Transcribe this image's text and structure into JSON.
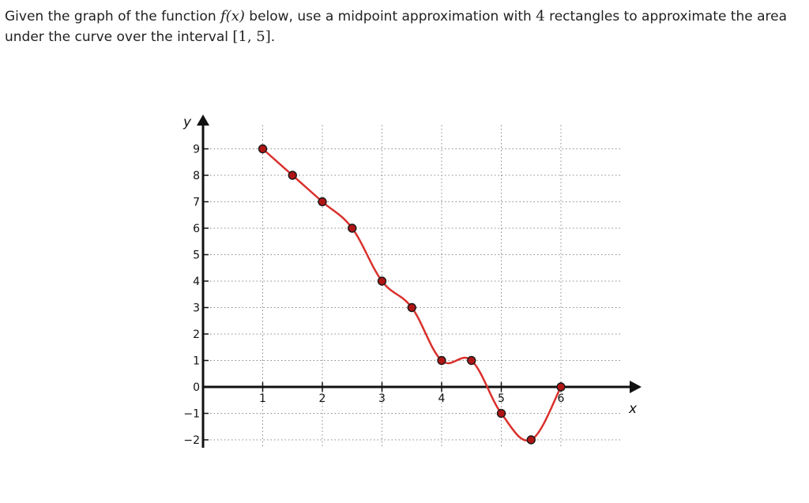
{
  "question": {
    "part1": "Given the graph of the function ",
    "func": "f(x)",
    "part2": " below, use a midpoint approximation with ",
    "n_rects": "4",
    "part3": " rectangles to approximate the area under the curve over the interval ",
    "interval": "[1, 5]",
    "part4": "."
  },
  "chart_data": {
    "type": "line",
    "title": "",
    "xlabel": "x",
    "ylabel": "y",
    "xlim": [
      0,
      6.5
    ],
    "ylim": [
      -2,
      9.5
    ],
    "grid": true,
    "x_ticks": [
      1,
      2,
      3,
      4,
      5,
      6
    ],
    "y_ticks": [
      -2,
      -1,
      0,
      1,
      2,
      3,
      4,
      5,
      6,
      7,
      8,
      9
    ],
    "x_tick_labels": [
      "1",
      "2",
      "3",
      "4",
      "5",
      "6"
    ],
    "y_tick_labels": [
      "−2",
      "−1",
      "0",
      "1",
      "2",
      "3",
      "4",
      "5",
      "6",
      "7",
      "8",
      "9"
    ],
    "series": [
      {
        "color": "#d9302c",
        "points": [
          {
            "x": 1,
            "y": 9
          },
          {
            "x": 1.5,
            "y": 8
          },
          {
            "x": 2,
            "y": 7
          },
          {
            "x": 2.5,
            "y": 6
          },
          {
            "x": 3,
            "y": 4
          },
          {
            "x": 3.5,
            "y": 3
          },
          {
            "x": 4,
            "y": 1
          },
          {
            "x": 4.5,
            "y": 1
          },
          {
            "x": 5,
            "y": -1
          },
          {
            "x": 5.5,
            "y": -2
          },
          {
            "x": 6,
            "y": 0
          }
        ]
      }
    ],
    "marker_color": "#b01515"
  }
}
